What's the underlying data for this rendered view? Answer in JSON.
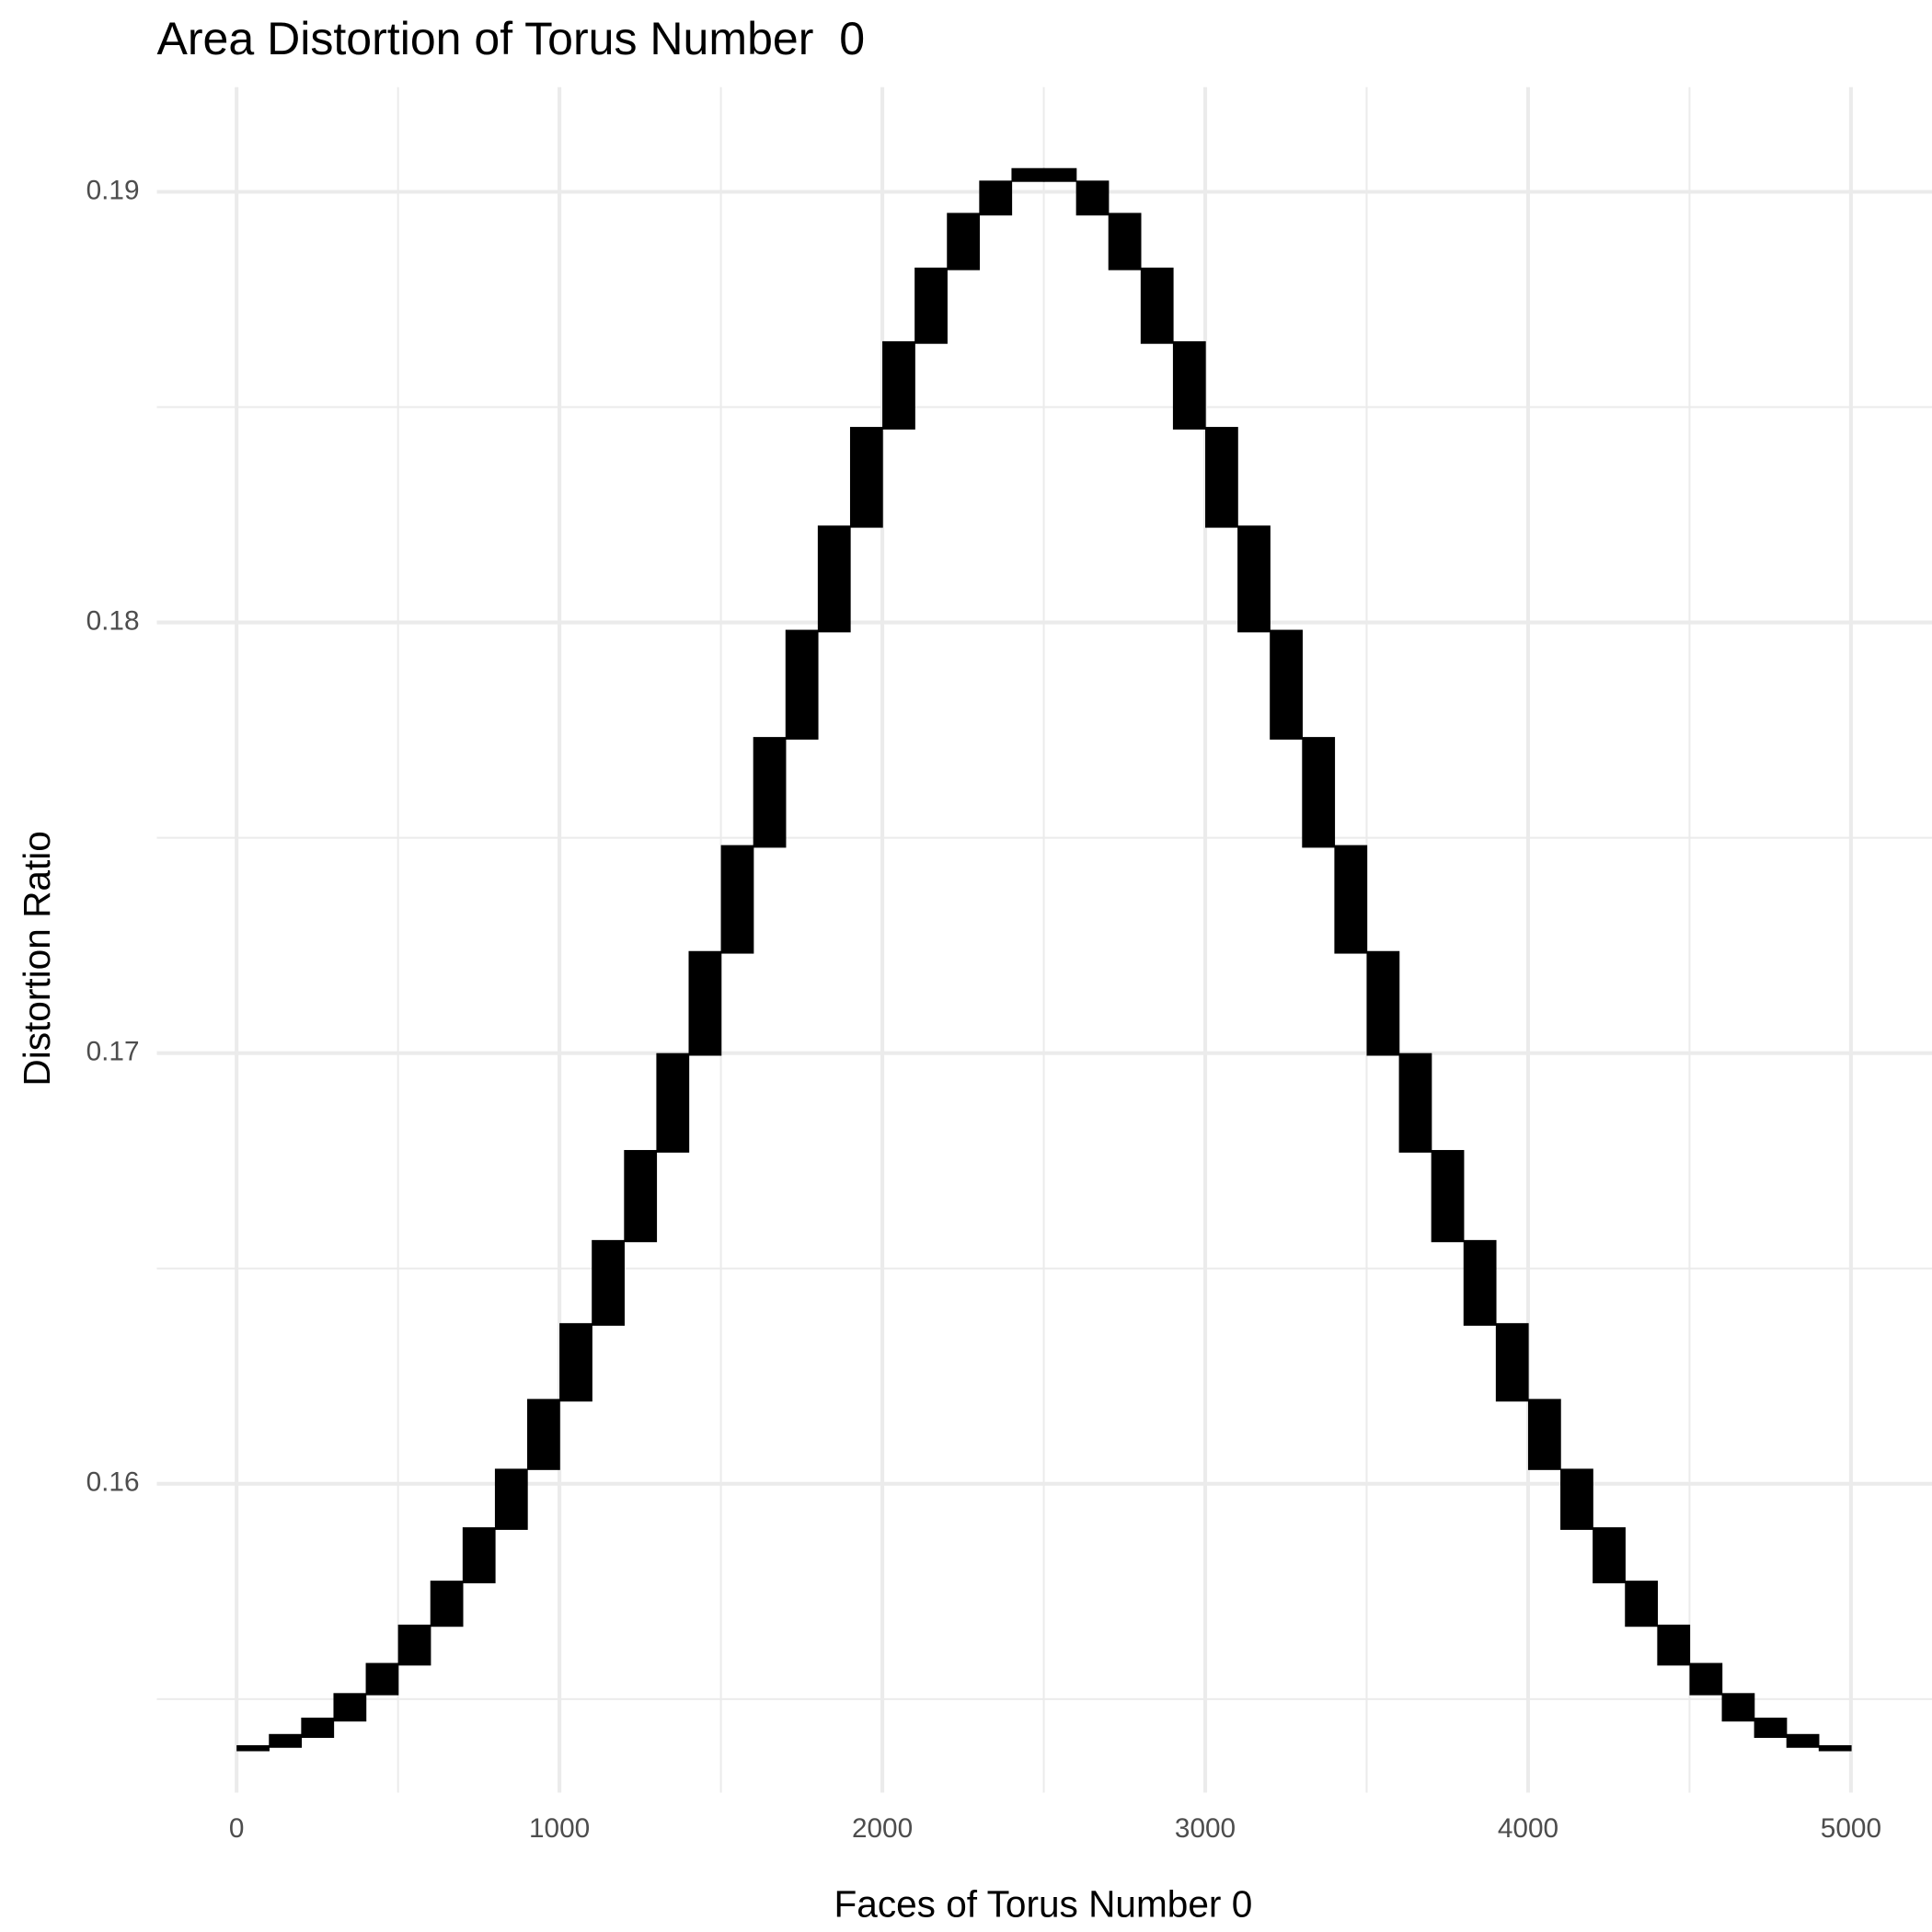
{
  "chart_data": {
    "type": "range-step",
    "title": "Area Distortion of Torus Number  0",
    "x_label": "Faces of Torus Number 0",
    "y_label": "Distortion Ratio",
    "bins": [
      0,
      100,
      200,
      300,
      400,
      500,
      600,
      700,
      800,
      900,
      1000,
      1100,
      1200,
      1300,
      1400,
      1500,
      1600,
      1700,
      1800,
      1900,
      2000,
      2100,
      2200,
      2300,
      2400,
      2500,
      2600,
      2700,
      2800,
      2900,
      3000,
      3100,
      3200,
      3300,
      3400,
      3500,
      3600,
      3700,
      3800,
      3900,
      4000,
      4100,
      4200,
      4300,
      4400,
      4500,
      4600,
      4700,
      4800,
      4900,
      5000
    ],
    "high": [
      0.15393,
      0.15419,
      0.15457,
      0.15514,
      0.15584,
      0.15673,
      0.15775,
      0.15899,
      0.16035,
      0.16197,
      0.16373,
      0.16566,
      0.16775,
      0.17,
      0.17237,
      0.17483,
      0.17734,
      0.17983,
      0.18225,
      0.18454,
      0.18653,
      0.18824,
      0.18951,
      0.19026,
      0.19055,
      0.19055,
      0.19026,
      0.18951,
      0.18824,
      0.18653,
      0.18454,
      0.18225,
      0.17983,
      0.17734,
      0.17483,
      0.17237,
      0.17,
      0.16775,
      0.16566,
      0.16373,
      0.16197,
      0.16035,
      0.15899,
      0.15775,
      0.15673,
      0.15584,
      0.15514,
      0.15457,
      0.15419,
      0.15393
    ],
    "low": [
      0.15379,
      0.15387,
      0.1541,
      0.15448,
      0.15509,
      0.15578,
      0.15668,
      0.15769,
      0.15893,
      0.16032,
      0.16191,
      0.16367,
      0.16561,
      0.16769,
      0.16994,
      0.17231,
      0.17477,
      0.17728,
      0.17977,
      0.1822,
      0.18448,
      0.18647,
      0.18818,
      0.18945,
      0.19023,
      0.19023,
      0.18945,
      0.18818,
      0.18647,
      0.18448,
      0.1822,
      0.17977,
      0.17728,
      0.17477,
      0.17231,
      0.16994,
      0.16769,
      0.16561,
      0.16367,
      0.16191,
      0.16032,
      0.15893,
      0.15769,
      0.15668,
      0.15578,
      0.15509,
      0.15448,
      0.1541,
      0.15387,
      0.15379
    ],
    "color": "#000000",
    "xlim": [
      -247,
      5251
    ],
    "ylim": [
      0.15283,
      0.19243
    ],
    "xticks": [
      0,
      1000,
      2000,
      3000,
      4000,
      5000
    ],
    "yticks": [
      0.16,
      0.17,
      0.18,
      0.19
    ],
    "xminor": [
      500,
      1500,
      2500,
      3500,
      4500
    ],
    "yminor": [
      0.155,
      0.165,
      0.175,
      0.185
    ],
    "grid": true
  }
}
